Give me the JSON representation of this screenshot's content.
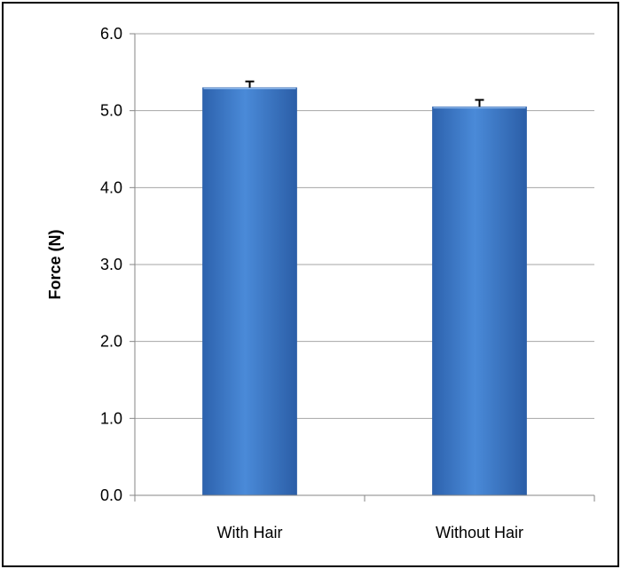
{
  "chart_data": {
    "type": "bar",
    "title": "",
    "xlabel": "",
    "ylabel": "Force (N)",
    "categories": [
      "With Hair",
      "Without Hair"
    ],
    "values": [
      5.3,
      5.05
    ],
    "error": [
      0.08,
      0.09
    ],
    "ylim": [
      0,
      6
    ],
    "yticks": [
      "0.0",
      "1.0",
      "2.0",
      "3.0",
      "4.0",
      "5.0",
      "6.0"
    ],
    "grid": true,
    "legend": "none",
    "colors": {
      "bar": "#3f7fd0",
      "bar_dark": "#2a5ea8",
      "grid": "#a6a6a6",
      "axis": "#868686"
    }
  }
}
